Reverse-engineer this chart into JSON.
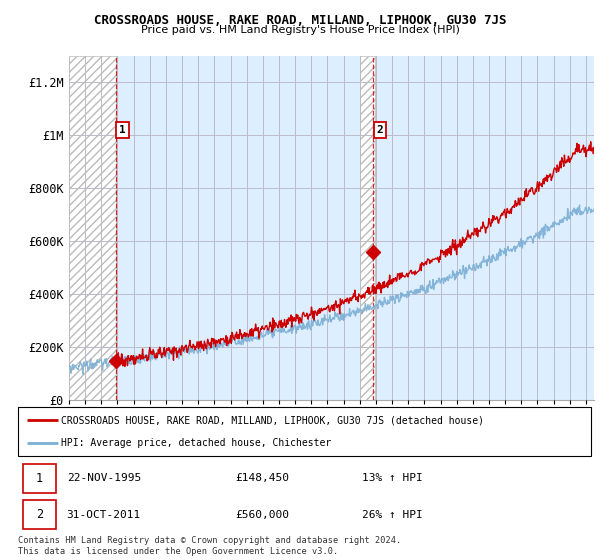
{
  "title": "CROSSROADS HOUSE, RAKE ROAD, MILLAND, LIPHOOK, GU30 7JS",
  "subtitle": "Price paid vs. HM Land Registry's House Price Index (HPI)",
  "ylabel_ticks": [
    "£0",
    "£200K",
    "£400K",
    "£600K",
    "£800K",
    "£1M",
    "£1.2M"
  ],
  "ytick_values": [
    0,
    200000,
    400000,
    600000,
    800000,
    1000000,
    1200000
  ],
  "ylim": [
    0,
    1300000
  ],
  "xlim_start": 1993.0,
  "xlim_end": 2025.5,
  "hatch_region_start": 1993.0,
  "hatch_region_end": 1995.9,
  "hatch_region_start2": 2011.0,
  "hatch_region_end2": 2011.92,
  "sale1_x": 1995.9,
  "sale1_y": 148450,
  "sale2_x": 2011.83,
  "sale2_y": 560000,
  "sale1_label": "1",
  "sale2_label": "2",
  "red_dashed_x1": 1995.9,
  "red_dashed_x2": 2011.83,
  "legend_house": "CROSSROADS HOUSE, RAKE ROAD, MILLAND, LIPHOOK, GU30 7JS (detached house)",
  "legend_hpi": "HPI: Average price, detached house, Chichester",
  "table_row1": [
    "1",
    "22-NOV-1995",
    "£148,450",
    "13% ↑ HPI"
  ],
  "table_row2": [
    "2",
    "31-OCT-2011",
    "£560,000",
    "26% ↑ HPI"
  ],
  "footnote": "Contains HM Land Registry data © Crown copyright and database right 2024.\nThis data is licensed under the Open Government Licence v3.0.",
  "line_color_house": "#cc0000",
  "line_color_hpi": "#7bafd4",
  "chart_bg_color": "#ddeeff",
  "hatch_bg_color": "#ffffff",
  "grid_color": "#bbbbcc",
  "xtick_years": [
    1993,
    1994,
    1995,
    1996,
    1997,
    1998,
    1999,
    2000,
    2001,
    2002,
    2003,
    2004,
    2005,
    2006,
    2007,
    2008,
    2009,
    2010,
    2011,
    2012,
    2013,
    2014,
    2015,
    2016,
    2017,
    2018,
    2019,
    2020,
    2021,
    2022,
    2023,
    2024,
    2025
  ]
}
